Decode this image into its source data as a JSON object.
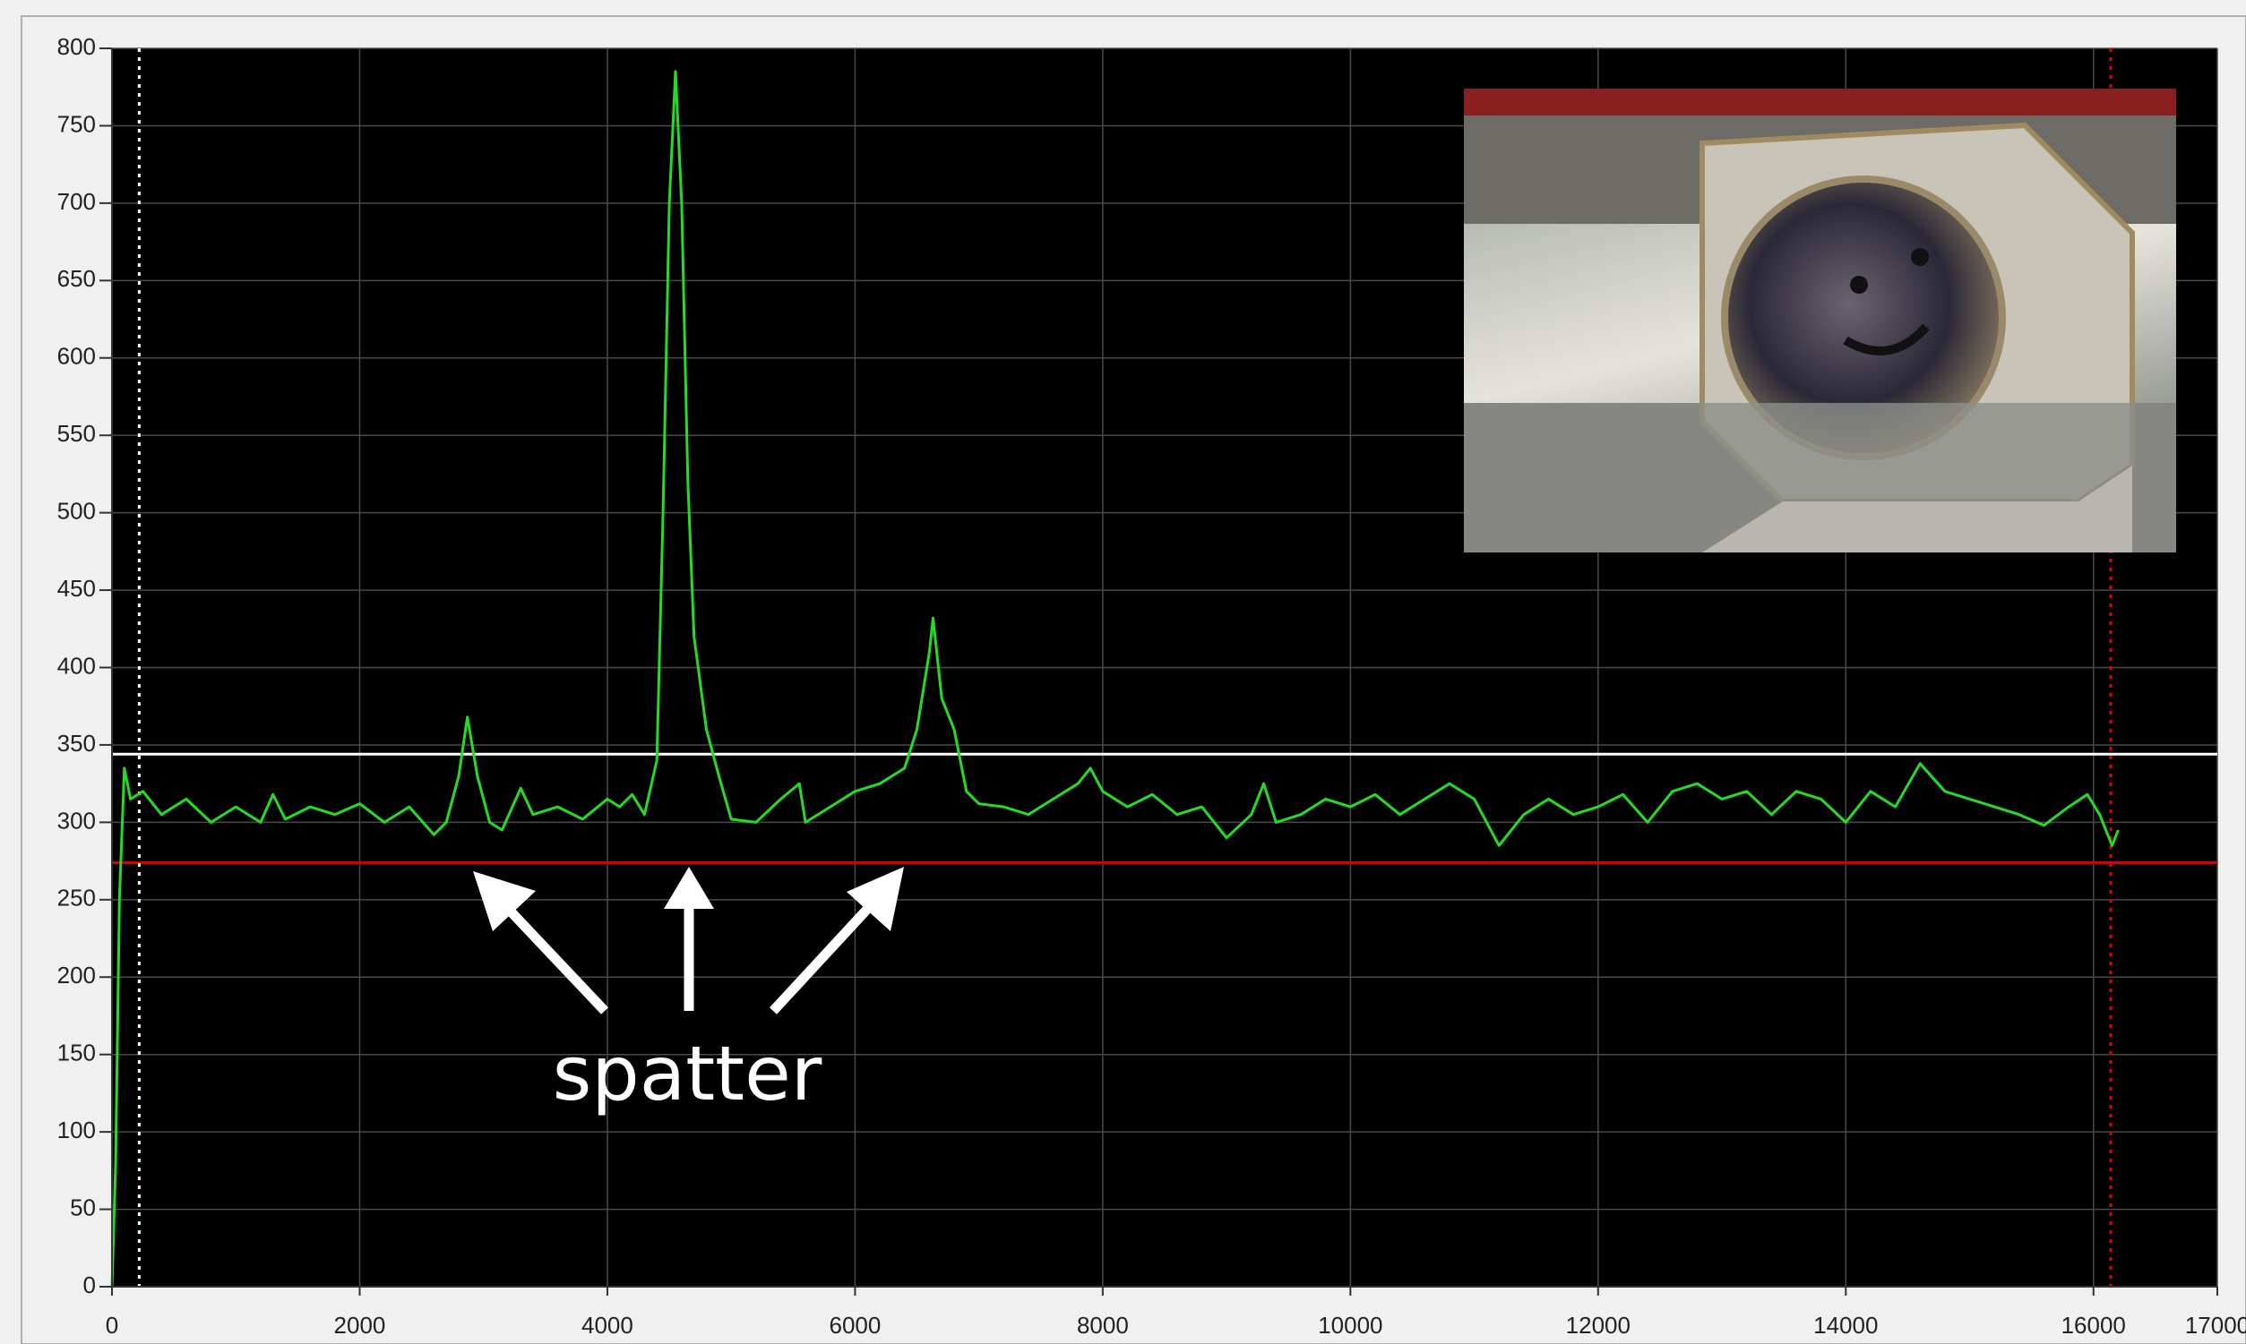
{
  "chart_data": {
    "type": "line",
    "annotation": "spatter",
    "color": "#22dd22",
    "x": [
      0,
      30,
      60,
      100,
      150,
      250,
      400,
      600,
      800,
      1000,
      1200,
      1300,
      1400,
      1600,
      1800,
      2000,
      2200,
      2400,
      2600,
      2700,
      2800,
      2870,
      2950,
      3050,
      3150,
      3300,
      3400,
      3600,
      3800,
      4000,
      4100,
      4200,
      4300,
      4400,
      4450,
      4500,
      4550,
      4600,
      4650,
      4700,
      4800,
      4900,
      5000,
      5200,
      5400,
      5550,
      5600,
      5800,
      6000,
      6200,
      6400,
      6500,
      6600,
      6630,
      6700,
      6800,
      6900,
      7000,
      7200,
      7400,
      7600,
      7800,
      7900,
      8000,
      8200,
      8400,
      8600,
      8800,
      9000,
      9200,
      9300,
      9400,
      9600,
      9800,
      10000,
      10200,
      10400,
      10600,
      10800,
      11000,
      11200,
      11400,
      11600,
      11800,
      12000,
      12200,
      12400,
      12600,
      12800,
      13000,
      13200,
      13400,
      13600,
      13800,
      14000,
      14200,
      14400,
      14600,
      14800,
      15000,
      15200,
      15400,
      15600,
      15800,
      15950,
      16050,
      16150,
      16200
    ],
    "values": [
      0,
      80,
      250,
      335,
      315,
      320,
      305,
      315,
      300,
      310,
      300,
      318,
      302,
      310,
      305,
      312,
      300,
      310,
      292,
      300,
      330,
      368,
      330,
      300,
      295,
      322,
      305,
      310,
      302,
      315,
      310,
      318,
      305,
      340,
      500,
      700,
      785,
      700,
      520,
      420,
      360,
      330,
      302,
      300,
      315,
      325,
      300,
      310,
      320,
      325,
      335,
      360,
      410,
      432,
      380,
      360,
      320,
      312,
      310,
      305,
      315,
      325,
      335,
      320,
      310,
      318,
      305,
      310,
      290,
      305,
      325,
      300,
      305,
      315,
      310,
      318,
      305,
      315,
      325,
      315,
      285,
      305,
      315,
      305,
      310,
      318,
      300,
      320,
      325,
      315,
      320,
      305,
      320,
      315,
      300,
      320,
      310,
      338,
      320,
      315,
      310,
      305,
      298,
      310,
      318,
      305,
      285,
      295
    ],
    "xlim": [
      0,
      17000
    ],
    "ylim": [
      0,
      800
    ],
    "xticks": [
      0,
      2000,
      4000,
      6000,
      8000,
      10000,
      12000,
      14000,
      16000,
      17000
    ],
    "yticks": [
      0,
      50,
      100,
      150,
      200,
      250,
      300,
      350,
      400,
      450,
      500,
      550,
      600,
      650,
      700,
      750,
      800
    ],
    "grid": true,
    "hlines": [
      {
        "value": 344,
        "color": "#ffffff"
      },
      {
        "value": 274,
        "color": "#dd0000"
      }
    ],
    "vlines": [
      {
        "value": 220,
        "color": "#ffffff"
      },
      {
        "value": 16140,
        "color": "#dd0000"
      }
    ]
  }
}
